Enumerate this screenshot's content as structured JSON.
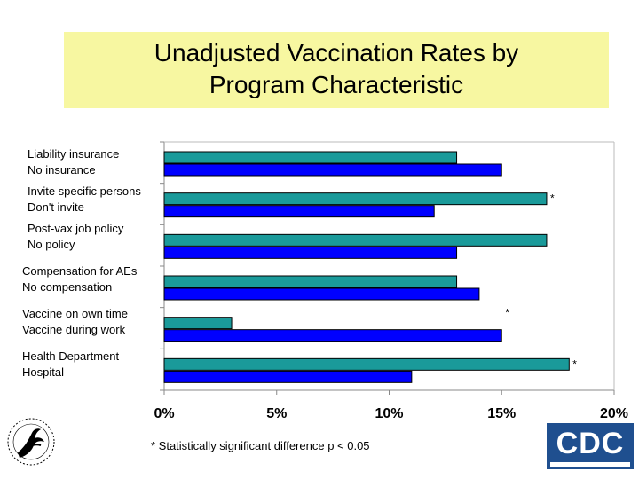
{
  "title_lines": [
    "Unadjusted Vaccination Rates by",
    "Program Characteristic"
  ],
  "footnote": "* Statistically significant difference p < 0.05",
  "logos": {
    "left": "hhs-eagle-seal",
    "right_text": "CDC"
  },
  "colors": {
    "series_a": "#1a9a9a",
    "series_b": "#0000ff",
    "title_bg": "#f7f7a1",
    "cdc_blue": "#1f4f8f"
  },
  "chart_data": {
    "type": "bar",
    "orientation": "horizontal",
    "groups": [
      {
        "labels": [
          "Liability insurance",
          "No insurance"
        ],
        "values": [
          13,
          15
        ],
        "significant": false
      },
      {
        "labels": [
          "Invite specific persons",
          "Don't invite"
        ],
        "values": [
          17,
          12
        ],
        "significant": true
      },
      {
        "labels": [
          "Post-vax job policy",
          "No policy"
        ],
        "values": [
          17,
          13
        ],
        "significant": false
      },
      {
        "labels": [
          "Compensation for AEs",
          "No compensation"
        ],
        "values": [
          13,
          14
        ],
        "significant": false
      },
      {
        "labels": [
          "Vaccine on own time",
          "Vaccine during work"
        ],
        "values": [
          3,
          15
        ],
        "significant": true
      },
      {
        "labels": [
          "Health Department",
          "Hospital"
        ],
        "values": [
          18,
          11
        ],
        "significant": true
      }
    ],
    "xlim": [
      0,
      20
    ],
    "xticks": [
      "0%",
      "5%",
      "10%",
      "15%",
      "20%"
    ],
    "significance_marker": "*",
    "grid": false
  }
}
